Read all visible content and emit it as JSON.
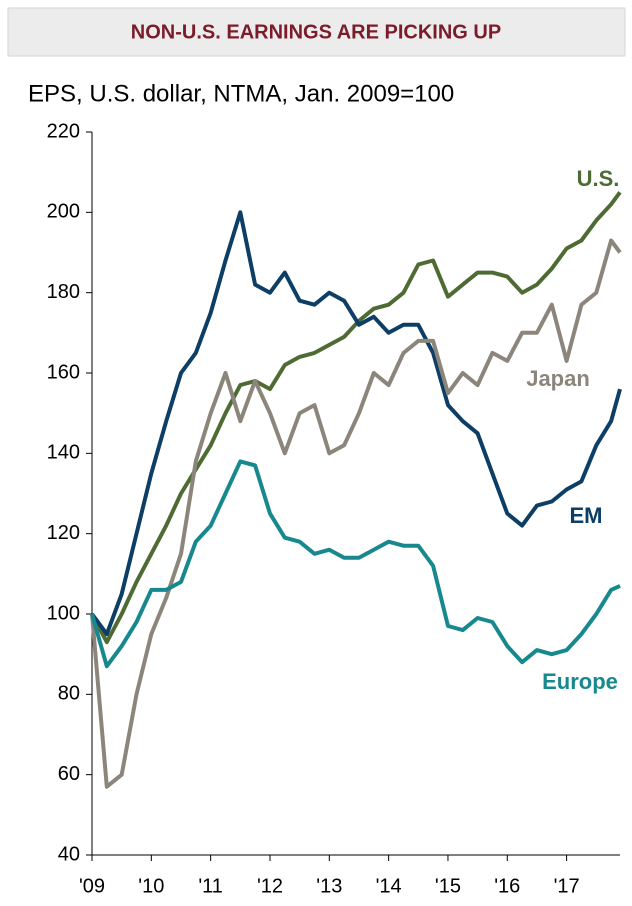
{
  "chart_data": {
    "type": "line",
    "title": "NON-U.S. EARNINGS ARE PICKING UP",
    "subtitle": "EPS, U.S. dollar, NTMA, Jan. 2009=100",
    "x": [
      2009,
      2009.25,
      2009.5,
      2009.75,
      2010,
      2010.25,
      2010.5,
      2010.75,
      2011,
      2011.25,
      2011.5,
      2011.75,
      2012,
      2012.25,
      2012.5,
      2012.75,
      2013,
      2013.25,
      2013.5,
      2013.75,
      2014,
      2014.25,
      2014.5,
      2014.75,
      2015,
      2015.25,
      2015.5,
      2015.75,
      2016,
      2016.25,
      2016.5,
      2016.75,
      2017,
      2017.25,
      2017.5,
      2017.75,
      2017.9
    ],
    "series": [
      {
        "name": "U.S.",
        "color": "#4e6b34",
        "values": [
          100,
          93,
          100,
          108,
          115,
          122,
          130,
          136,
          142,
          150,
          157,
          158,
          156,
          162,
          164,
          165,
          167,
          169,
          173,
          176,
          177,
          180,
          187,
          188,
          179,
          182,
          185,
          185,
          184,
          180,
          182,
          186,
          191,
          193,
          198,
          202,
          205
        ]
      },
      {
        "name": "EM",
        "color": "#0c3e66",
        "values": [
          100,
          95,
          105,
          120,
          135,
          148,
          160,
          165,
          175,
          188,
          200,
          182,
          180,
          185,
          178,
          177,
          180,
          178,
          172,
          174,
          170,
          172,
          172,
          165,
          152,
          148,
          145,
          135,
          125,
          122,
          127,
          128,
          131,
          133,
          142,
          148,
          156
        ]
      },
      {
        "name": "Japan",
        "color": "#8c857b",
        "values": [
          100,
          57,
          60,
          80,
          95,
          104,
          115,
          138,
          150,
          160,
          148,
          158,
          150,
          140,
          150,
          152,
          140,
          142,
          150,
          160,
          157,
          165,
          168,
          168,
          155,
          160,
          157,
          165,
          163,
          170,
          170,
          177,
          163,
          177,
          180,
          193,
          190
        ]
      },
      {
        "name": "Europe",
        "color": "#17898e",
        "values": [
          100,
          87,
          92,
          98,
          106,
          106,
          108,
          118,
          122,
          130,
          138,
          137,
          125,
          119,
          118,
          115,
          116,
          114,
          114,
          116,
          118,
          117,
          117,
          112,
          97,
          96,
          99,
          98,
          92,
          88,
          91,
          90,
          91,
          95,
          100,
          106,
          107
        ]
      }
    ],
    "xlim": [
      2009,
      2017.9
    ],
    "xticks": [
      {
        "value": 2009,
        "label": "'09"
      },
      {
        "value": 2010,
        "label": "'10"
      },
      {
        "value": 2011,
        "label": "'11"
      },
      {
        "value": 2012,
        "label": "'12"
      },
      {
        "value": 2013,
        "label": "'13"
      },
      {
        "value": 2014,
        "label": "'14"
      },
      {
        "value": 2015,
        "label": "'15"
      },
      {
        "value": 2016,
        "label": "'16"
      },
      {
        "value": 2017,
        "label": "'17"
      }
    ],
    "ylim": [
      40,
      220
    ],
    "yticks": [
      40,
      60,
      80,
      100,
      120,
      140,
      160,
      180,
      200,
      220
    ],
    "grid": false
  }
}
